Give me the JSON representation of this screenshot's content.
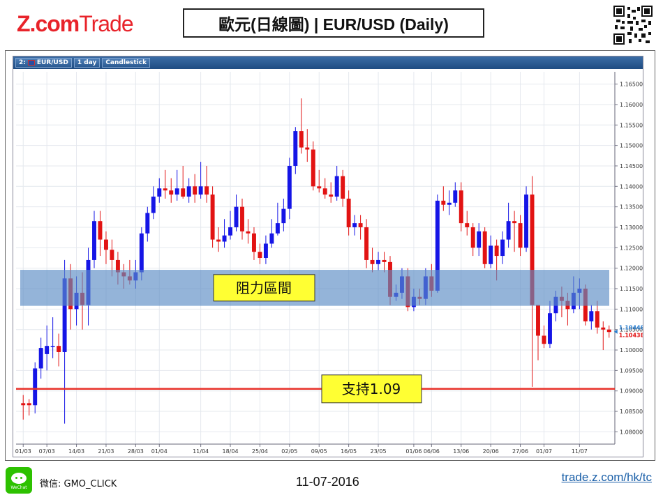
{
  "header": {
    "logo_text_bold": "Z.com",
    "logo_text_light": "Trade",
    "title": "歐元(日線圖) | EUR/USD  (Daily)",
    "qr_icon": "qr-code-icon"
  },
  "toolbar": {
    "symbol": "EUR/USD",
    "period": "1 day",
    "style": "Candlestick",
    "prefix": "2:"
  },
  "colors": {
    "up": "#1515e6",
    "down": "#e21313",
    "band": "#5b8cc4",
    "support": "#e8322a",
    "label_bg": "#ffff33"
  },
  "chart_data": {
    "type": "candlestick",
    "symbol": "EUR/USD",
    "ylim": [
      1.077,
      1.168
    ],
    "y_ticks": [
      "1.16500",
      "1.16000",
      "1.15500",
      "1.15000",
      "1.14500",
      "1.14000",
      "1.13500",
      "1.13000",
      "1.12500",
      "1.12000",
      "1.11500",
      "1.11000",
      "1.10500",
      "1.10000",
      "1.09500",
      "1.09000",
      "1.08500",
      "1.08000"
    ],
    "x_ticks": [
      {
        "label": "01/03",
        "idx": 0
      },
      {
        "label": "07/03",
        "idx": 4
      },
      {
        "label": "14/03",
        "idx": 9
      },
      {
        "label": "21/03",
        "idx": 14
      },
      {
        "label": "28/03",
        "idx": 19
      },
      {
        "label": "01/04",
        "idx": 23
      },
      {
        "label": "11/04",
        "idx": 30
      },
      {
        "label": "18/04",
        "idx": 35
      },
      {
        "label": "25/04",
        "idx": 40
      },
      {
        "label": "02/05",
        "idx": 45
      },
      {
        "label": "09/05",
        "idx": 50
      },
      {
        "label": "16/05",
        "idx": 55
      },
      {
        "label": "23/05",
        "idx": 60
      },
      {
        "label": "01/06",
        "idx": 66
      },
      {
        "label": "06/06",
        "idx": 69
      },
      {
        "label": "13/06",
        "idx": 74
      },
      {
        "label": "20/06",
        "idx": 79
      },
      {
        "label": "27/06",
        "idx": 84
      },
      {
        "label": "01/07",
        "idx": 88
      },
      {
        "label": "11/07",
        "idx": 94
      }
    ],
    "candles": [
      [
        1.087,
        1.0865,
        1.089,
        1.083
      ],
      [
        1.087,
        1.0865,
        1.088,
        1.084
      ],
      [
        1.0865,
        1.0955,
        1.097,
        1.0845
      ],
      [
        1.0955,
        1.1005,
        1.103,
        1.093
      ],
      [
        1.099,
        1.101,
        1.106,
        1.095
      ],
      [
        1.101,
        1.101,
        1.108,
        1.098
      ],
      [
        1.101,
        1.0995,
        1.104,
        1.096
      ],
      [
        1.0995,
        1.1175,
        1.122,
        1.082
      ],
      [
        1.1175,
        1.11,
        1.121,
        1.105
      ],
      [
        1.11,
        1.114,
        1.118,
        1.106
      ],
      [
        1.114,
        1.111,
        1.119,
        1.105
      ],
      [
        1.111,
        1.122,
        1.125,
        1.106
      ],
      [
        1.122,
        1.1315,
        1.134,
        1.12
      ],
      [
        1.1315,
        1.127,
        1.134,
        1.123
      ],
      [
        1.127,
        1.1245,
        1.129,
        1.121
      ],
      [
        1.1245,
        1.122,
        1.127,
        1.118
      ],
      [
        1.122,
        1.119,
        1.124,
        1.116
      ],
      [
        1.119,
        1.118,
        1.121,
        1.115
      ],
      [
        1.118,
        1.117,
        1.122,
        1.116
      ],
      [
        1.117,
        1.119,
        1.122,
        1.115
      ],
      [
        1.119,
        1.1285,
        1.13,
        1.117
      ],
      [
        1.1285,
        1.1335,
        1.135,
        1.1265
      ],
      [
        1.1335,
        1.1375,
        1.14,
        1.132
      ],
      [
        1.1375,
        1.1395,
        1.142,
        1.136
      ],
      [
        1.1395,
        1.139,
        1.144,
        1.137
      ],
      [
        1.139,
        1.138,
        1.142,
        1.136
      ],
      [
        1.138,
        1.1395,
        1.144,
        1.1365
      ],
      [
        1.1395,
        1.1375,
        1.145,
        1.137
      ],
      [
        1.1375,
        1.14,
        1.142,
        1.136
      ],
      [
        1.14,
        1.138,
        1.143,
        1.136
      ],
      [
        1.138,
        1.14,
        1.146,
        1.137
      ],
      [
        1.14,
        1.138,
        1.145,
        1.136
      ],
      [
        1.138,
        1.127,
        1.14,
        1.125
      ],
      [
        1.127,
        1.1265,
        1.13,
        1.124
      ],
      [
        1.1265,
        1.128,
        1.132,
        1.125
      ],
      [
        1.128,
        1.13,
        1.134,
        1.127
      ],
      [
        1.13,
        1.135,
        1.138,
        1.129
      ],
      [
        1.135,
        1.129,
        1.137,
        1.127
      ],
      [
        1.129,
        1.1285,
        1.132,
        1.126
      ],
      [
        1.1285,
        1.124,
        1.13,
        1.122
      ],
      [
        1.124,
        1.1225,
        1.126,
        1.121
      ],
      [
        1.1225,
        1.126,
        1.128,
        1.121
      ],
      [
        1.126,
        1.1285,
        1.132,
        1.125
      ],
      [
        1.1285,
        1.131,
        1.136,
        1.128
      ],
      [
        1.131,
        1.1345,
        1.137,
        1.129
      ],
      [
        1.1345,
        1.145,
        1.147,
        1.132
      ],
      [
        1.145,
        1.1535,
        1.1545,
        1.143
      ],
      [
        1.1535,
        1.1495,
        1.1615,
        1.148
      ],
      [
        1.1495,
        1.149,
        1.154,
        1.146
      ],
      [
        1.149,
        1.14,
        1.151,
        1.139
      ],
      [
        1.14,
        1.1395,
        1.144,
        1.1385
      ],
      [
        1.1395,
        1.138,
        1.142,
        1.137
      ],
      [
        1.138,
        1.1375,
        1.141,
        1.136
      ],
      [
        1.1375,
        1.1425,
        1.145,
        1.1365
      ],
      [
        1.1425,
        1.137,
        1.144,
        1.135
      ],
      [
        1.137,
        1.13,
        1.139,
        1.128
      ],
      [
        1.13,
        1.131,
        1.133,
        1.128
      ],
      [
        1.131,
        1.13,
        1.133,
        1.127
      ],
      [
        1.13,
        1.122,
        1.132,
        1.12
      ],
      [
        1.122,
        1.121,
        1.125,
        1.119
      ],
      [
        1.121,
        1.122,
        1.124,
        1.1195
      ],
      [
        1.122,
        1.1215,
        1.124,
        1.119
      ],
      [
        1.1215,
        1.113,
        1.123,
        1.111
      ],
      [
        1.113,
        1.114,
        1.116,
        1.112
      ],
      [
        1.114,
        1.118,
        1.12,
        1.1125
      ],
      [
        1.118,
        1.1105,
        1.12,
        1.1095
      ],
      [
        1.1105,
        1.113,
        1.115,
        1.1095
      ],
      [
        1.113,
        1.1125,
        1.115,
        1.111
      ],
      [
        1.1125,
        1.118,
        1.12,
        1.111
      ],
      [
        1.118,
        1.1145,
        1.121,
        1.113
      ],
      [
        1.1145,
        1.1365,
        1.138,
        1.114
      ],
      [
        1.1365,
        1.1355,
        1.14,
        1.134
      ],
      [
        1.1355,
        1.136,
        1.139,
        1.133
      ],
      [
        1.136,
        1.139,
        1.141,
        1.135
      ],
      [
        1.139,
        1.131,
        1.141,
        1.129
      ],
      [
        1.131,
        1.13,
        1.134,
        1.128
      ],
      [
        1.13,
        1.125,
        1.131,
        1.123
      ],
      [
        1.125,
        1.129,
        1.131,
        1.123
      ],
      [
        1.129,
        1.121,
        1.13,
        1.12
      ],
      [
        1.121,
        1.1255,
        1.128,
        1.12
      ],
      [
        1.1255,
        1.123,
        1.127,
        1.117
      ],
      [
        1.123,
        1.127,
        1.129,
        1.121
      ],
      [
        1.127,
        1.1315,
        1.136,
        1.125
      ],
      [
        1.1315,
        1.131,
        1.134,
        1.124
      ],
      [
        1.131,
        1.125,
        1.133,
        1.123
      ],
      [
        1.125,
        1.138,
        1.14,
        1.124
      ],
      [
        1.138,
        1.111,
        1.1425,
        1.091
      ],
      [
        1.111,
        1.1035,
        1.108,
        1.0975
      ],
      [
        1.1035,
        1.1015,
        1.106,
        1.1005
      ],
      [
        1.1015,
        1.109,
        1.112,
        1.1005
      ],
      [
        1.109,
        1.113,
        1.1145,
        1.107
      ],
      [
        1.113,
        1.112,
        1.1155,
        1.108
      ],
      [
        1.112,
        1.11,
        1.114,
        1.106
      ],
      [
        1.11,
        1.114,
        1.118,
        1.109
      ],
      [
        1.114,
        1.115,
        1.1175,
        1.11
      ],
      [
        1.115,
        1.107,
        1.116,
        1.106
      ],
      [
        1.107,
        1.1095,
        1.111,
        1.105
      ],
      [
        1.1095,
        1.1055,
        1.112,
        1.104
      ],
      [
        1.1055,
        1.105,
        1.107,
        1.1
      ],
      [
        1.105,
        1.1044,
        1.106,
        1.103
      ]
    ],
    "price_labels": [
      {
        "text": "1.10448",
        "value": 1.10448,
        "color": "#2a7fd0"
      },
      {
        "text": "1.10438",
        "value": 1.10438,
        "color": "#e21313"
      }
    ],
    "resistance_zone": {
      "from": 1.1108,
      "to": 1.1196,
      "label": "阻力區間"
    },
    "support_line": {
      "value": 1.0905,
      "label": "支持1.09"
    }
  },
  "footer": {
    "wechat_label": "WeChat",
    "wechat_id": "微信: GMO_CLICK",
    "date": "11-07-2016",
    "url": "trade.z.com/hk/tc"
  }
}
